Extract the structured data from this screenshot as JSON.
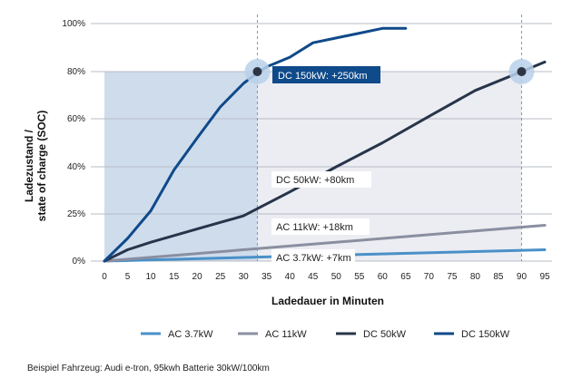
{
  "chart_data": {
    "type": "line",
    "xlabel": "Ladedauer in Minuten",
    "ylabel_line1": "Ladezustand /",
    "ylabel_line2": "state of charge (SOC)",
    "x_ticks": [
      "0",
      "5",
      "10",
      "15",
      "20",
      "25",
      "30",
      "35",
      "40",
      "45",
      "50",
      "55",
      "60",
      "65",
      "70",
      "75",
      "80",
      "85",
      "90",
      "95"
    ],
    "y_ticks": [
      {
        "value": 0,
        "label": "0%"
      },
      {
        "value": 25,
        "label": "25%"
      },
      {
        "value": 40,
        "label": "40%"
      },
      {
        "value": 60,
        "label": "60%"
      },
      {
        "value": 80,
        "label": "80%"
      },
      {
        "value": 100,
        "label": "100%"
      }
    ],
    "xlim": [
      0,
      95
    ],
    "ylim": [
      0,
      100
    ],
    "series": [
      {
        "name": "AC 3.7kW",
        "color": "#4a90c8",
        "x": [
          0,
          95
        ],
        "y": [
          0,
          6
        ]
      },
      {
        "name": "AC 11kW",
        "color": "#8a8fa0",
        "x": [
          0,
          95
        ],
        "y": [
          0,
          19
        ]
      },
      {
        "name": "DC 50kW",
        "color": "#27344a",
        "x": [
          0,
          5,
          10,
          20,
          30,
          40,
          50,
          60,
          70,
          80,
          90,
          95
        ],
        "y": [
          0,
          6,
          10,
          17,
          24,
          32,
          40,
          50,
          61,
          72,
          80,
          84
        ]
      },
      {
        "name": "DC 150kW",
        "color": "#0f4a8a",
        "x": [
          0,
          5,
          10,
          15,
          20,
          25,
          30,
          32,
          35,
          40,
          45,
          50,
          55,
          60,
          65
        ],
        "y": [
          0,
          12,
          26,
          39,
          52,
          65,
          75,
          78,
          82,
          86,
          92,
          94,
          96,
          98,
          98
        ]
      }
    ],
    "shaded_regions": [
      {
        "x0": 0,
        "x1": 33,
        "y0": 0,
        "y1": 80,
        "color": "#cfdcec"
      },
      {
        "x0": 33,
        "x1": 90,
        "y0": 0,
        "y1": 80,
        "color": "#ebedf2"
      }
    ],
    "vertical_guides": [
      33,
      90
    ],
    "markers": [
      {
        "x": 33,
        "y": 80
      },
      {
        "x": 90,
        "y": 80
      }
    ],
    "annotations": [
      {
        "text": "DC 150kW: +250km",
        "highlight": true
      },
      {
        "text": "DC 50kW: +80km",
        "highlight": false
      },
      {
        "text": "AC 11kW: +18km",
        "highlight": false
      },
      {
        "text": "AC 3.7kW: +7km",
        "highlight": false
      }
    ],
    "legend_position": "bottom",
    "grid": "horizontal"
  },
  "footnote": "Beispiel Fahrzeug: Audi e-tron, 95kwh Batterie 30kW/100km"
}
